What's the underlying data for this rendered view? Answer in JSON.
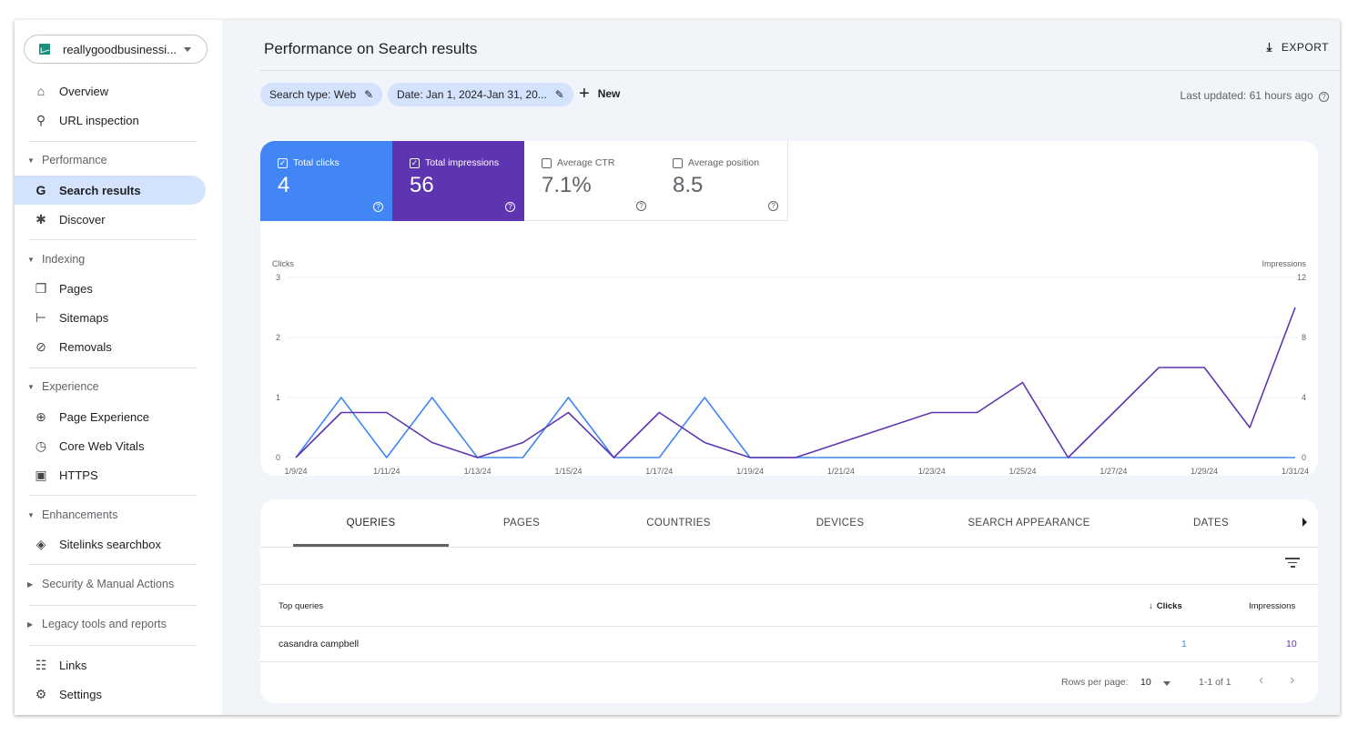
{
  "property": {
    "name": "reallygoodbusinessi...",
    "icon": "trend-chart-icon"
  },
  "sidebar": {
    "overview": "Overview",
    "url_inspection": "URL inspection",
    "performance": "Performance",
    "search_results": "Search results",
    "discover": "Discover",
    "indexing": "Indexing",
    "pages": "Pages",
    "sitemaps": "Sitemaps",
    "removals": "Removals",
    "experience": "Experience",
    "page_experience": "Page Experience",
    "core_web_vitals": "Core Web Vitals",
    "https": "HTTPS",
    "enhancements": "Enhancements",
    "sitelinks_searchbox": "Sitelinks searchbox",
    "security": "Security & Manual Actions",
    "legacy": "Legacy tools and reports",
    "links": "Links",
    "settings": "Settings"
  },
  "header": {
    "title": "Performance on Search results",
    "export": "EXPORT",
    "chip_search_type": "Search type: Web",
    "chip_date": "Date: Jan 1, 2024-Jan 31, 20...",
    "new": "New",
    "last_updated": "Last updated: 61 hours ago"
  },
  "metrics": {
    "clicks": {
      "label": "Total clicks",
      "value": "4",
      "checked": true,
      "color": "#4285f4"
    },
    "impressions": {
      "label": "Total impressions",
      "value": "56",
      "checked": true,
      "color": "#5e35b1"
    },
    "ctr": {
      "label": "Average CTR",
      "value": "7.1%",
      "checked": false
    },
    "position": {
      "label": "Average position",
      "value": "8.5",
      "checked": false
    }
  },
  "chart_data": {
    "type": "line",
    "x": [
      "1/9/24",
      "1/10/24",
      "1/11/24",
      "1/12/24",
      "1/13/24",
      "1/14/24",
      "1/15/24",
      "1/16/24",
      "1/17/24",
      "1/18/24",
      "1/19/24",
      "1/20/24",
      "1/21/24",
      "1/22/24",
      "1/23/24",
      "1/24/24",
      "1/25/24",
      "1/26/24",
      "1/27/24",
      "1/28/24",
      "1/29/24",
      "1/30/24",
      "1/31/24"
    ],
    "x_ticks": [
      "1/9/24",
      "1/11/24",
      "1/13/24",
      "1/15/24",
      "1/17/24",
      "1/19/24",
      "1/21/24",
      "1/23/24",
      "1/25/24",
      "1/27/24",
      "1/29/24",
      "1/31/24"
    ],
    "left_axis": {
      "label": "Clicks",
      "ticks": [
        "0",
        "1",
        "2",
        "3"
      ],
      "range": [
        0,
        3
      ]
    },
    "right_axis": {
      "label": "Impressions",
      "ticks": [
        "0",
        "4",
        "8",
        "12"
      ],
      "range": [
        0,
        12
      ]
    },
    "series": [
      {
        "name": "Clicks",
        "axis": "left",
        "color": "#4285f4",
        "values": [
          0,
          1,
          0,
          1,
          0,
          0,
          1,
          0,
          0,
          1,
          0,
          0,
          0,
          0,
          0,
          0,
          0,
          0,
          0,
          0,
          0,
          0,
          0
        ]
      },
      {
        "name": "Impressions",
        "axis": "right",
        "color": "#5e35b1",
        "values": [
          0,
          3,
          3,
          1,
          0,
          1,
          3,
          0,
          3,
          1,
          0,
          0,
          1,
          2,
          3,
          3,
          5,
          0,
          3,
          6,
          6,
          2,
          10
        ]
      }
    ],
    "grid": true
  },
  "table": {
    "tabs": [
      "QUERIES",
      "PAGES",
      "COUNTRIES",
      "DEVICES",
      "SEARCH APPEARANCE",
      "DATES"
    ],
    "col_query": "Top queries",
    "col_clicks": "Clicks",
    "col_impressions": "Impressions",
    "rows": [
      {
        "query": "casandra campbell",
        "clicks": "1",
        "impressions": "10"
      }
    ],
    "rows_per_page_label": "Rows per page:",
    "rows_per_page": "10",
    "range": "1-1 of 1"
  }
}
